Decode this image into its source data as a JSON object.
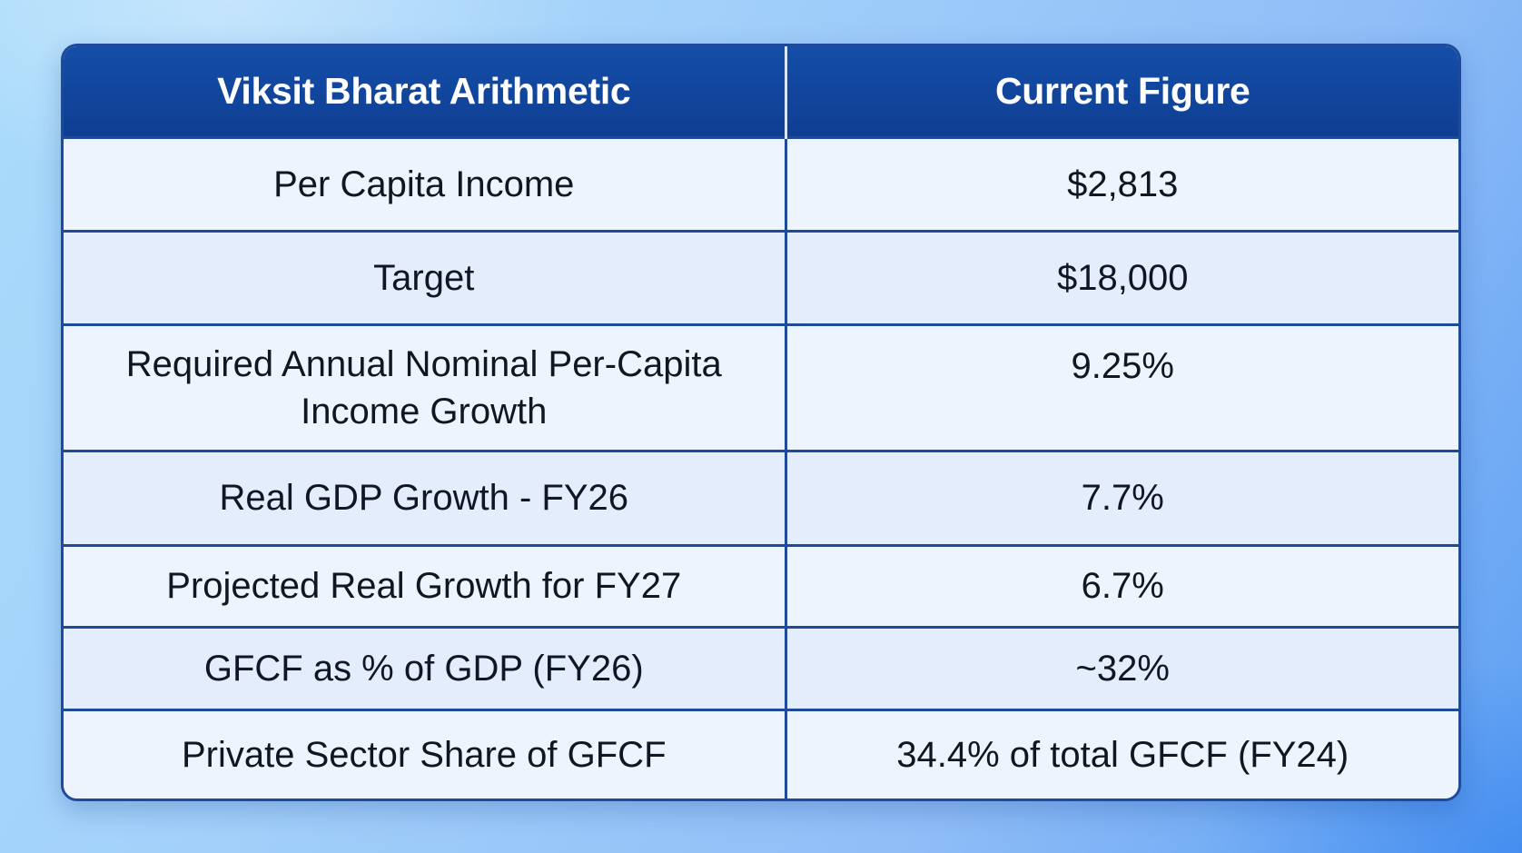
{
  "table": {
    "headers": [
      "Viksit Bharat Arithmetic",
      "Current Figure"
    ],
    "rows": [
      {
        "label": "Per Capita Income",
        "value": "$2,813"
      },
      {
        "label": "Target",
        "value": "$18,000"
      },
      {
        "label": "Required Annual Nominal Per-Capita Income Growth",
        "value": "9.25%"
      },
      {
        "label": "Real GDP Growth - FY26",
        "value": "7.7%"
      },
      {
        "label": "Projected Real Growth for FY27",
        "value": "6.7%"
      },
      {
        "label": "GFCF as % of GDP (FY26)",
        "value": "~32%"
      },
      {
        "label": "Private Sector Share of GFCF",
        "value": "34.4% of total GFCF (FY24)"
      }
    ]
  },
  "colors": {
    "header_bg": "#144ea8",
    "border": "#1d4a9a",
    "row_bg": "#edf4fe",
    "background": "#a2d0fa"
  }
}
